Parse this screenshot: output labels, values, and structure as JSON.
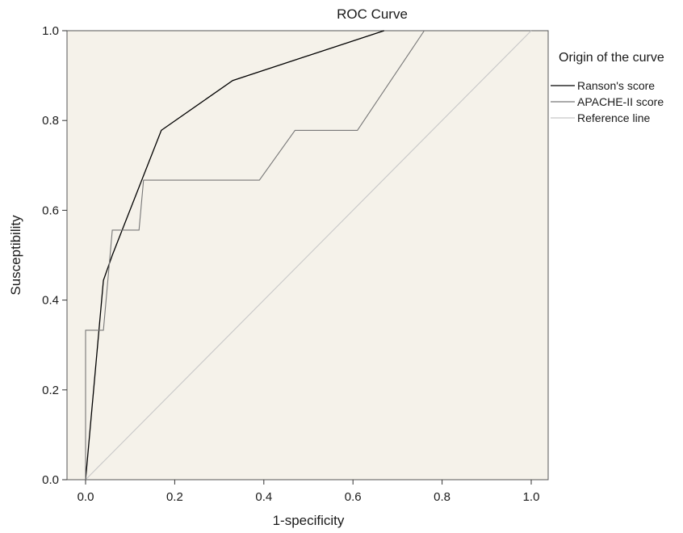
{
  "chart_data": {
    "type": "line",
    "title": "ROC Curve",
    "xlabel": "1-specificity",
    "ylabel": "Susceptibility",
    "xlim": [
      0,
      1
    ],
    "ylim": [
      0,
      1
    ],
    "xticks": [
      "0.0",
      "0.2",
      "0.4",
      "0.6",
      "0.8",
      "1.0"
    ],
    "yticks": [
      "0.0",
      "0.2",
      "0.4",
      "0.6",
      "0.8",
      "1.0"
    ],
    "grid": false,
    "plot_background": "#f5f2ea",
    "legend": {
      "title": "Origin of the curve",
      "placement": "right"
    },
    "series": [
      {
        "name": "Ranson's score",
        "color": "#000000",
        "x": [
          0.0,
          0.04,
          0.06,
          0.17,
          0.33,
          0.67
        ],
        "y": [
          0.0,
          0.444,
          0.5,
          0.778,
          0.889,
          1.0
        ]
      },
      {
        "name": "APACHE-II score",
        "color": "#777777",
        "x": [
          0.0,
          0.0,
          0.04,
          0.06,
          0.12,
          0.13,
          0.39,
          0.47,
          0.61,
          0.76
        ],
        "y": [
          0.0,
          0.333,
          0.333,
          0.556,
          0.556,
          0.667,
          0.667,
          0.778,
          0.778,
          1.0
        ]
      },
      {
        "name": "Reference line",
        "color": "#c8c8c8",
        "x": [
          0.0,
          1.0
        ],
        "y": [
          0.0,
          1.0
        ]
      }
    ]
  }
}
